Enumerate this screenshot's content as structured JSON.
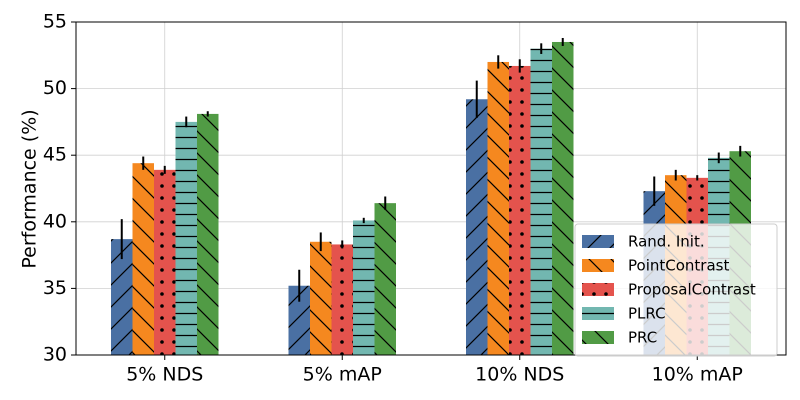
{
  "chart_data": {
    "type": "bar",
    "title": "",
    "xlabel": "",
    "ylabel": "Performance (%)",
    "ylim": [
      30,
      55
    ],
    "yticks": [
      30,
      35,
      40,
      45,
      50,
      55
    ],
    "grid": true,
    "legend_position": "lower-right",
    "categories": [
      "5% NDS",
      "5% mAP",
      "10% NDS",
      "10% mAP"
    ],
    "series": [
      {
        "name": "Rand. Init.",
        "color": "#4a70a3",
        "hatch": "diagonal-forward",
        "values": [
          38.7,
          35.2,
          49.2,
          42.3
        ],
        "errors": [
          1.5,
          1.2,
          1.4,
          1.1
        ]
      },
      {
        "name": "PointContrast",
        "color": "#f5881f",
        "hatch": "diagonal-back",
        "values": [
          44.4,
          38.5,
          52.0,
          43.5
        ],
        "errors": [
          0.5,
          0.7,
          0.5,
          0.4
        ]
      },
      {
        "name": "ProposalContrast",
        "color": "#e4534d",
        "hatch": "dots",
        "values": [
          43.9,
          38.3,
          51.7,
          43.3
        ],
        "errors": [
          0.3,
          0.3,
          0.5,
          0.2
        ]
      },
      {
        "name": "PLRC",
        "color": "#72b7b0",
        "hatch": "horizontal",
        "values": [
          47.5,
          40.1,
          53.0,
          44.8
        ],
        "errors": [
          0.4,
          0.2,
          0.4,
          0.4
        ]
      },
      {
        "name": "PRC",
        "color": "#519b45",
        "hatch": "diagonal-back",
        "values": [
          48.1,
          41.4,
          53.5,
          45.3
        ],
        "errors": [
          0.2,
          0.5,
          0.3,
          0.4
        ]
      }
    ]
  }
}
